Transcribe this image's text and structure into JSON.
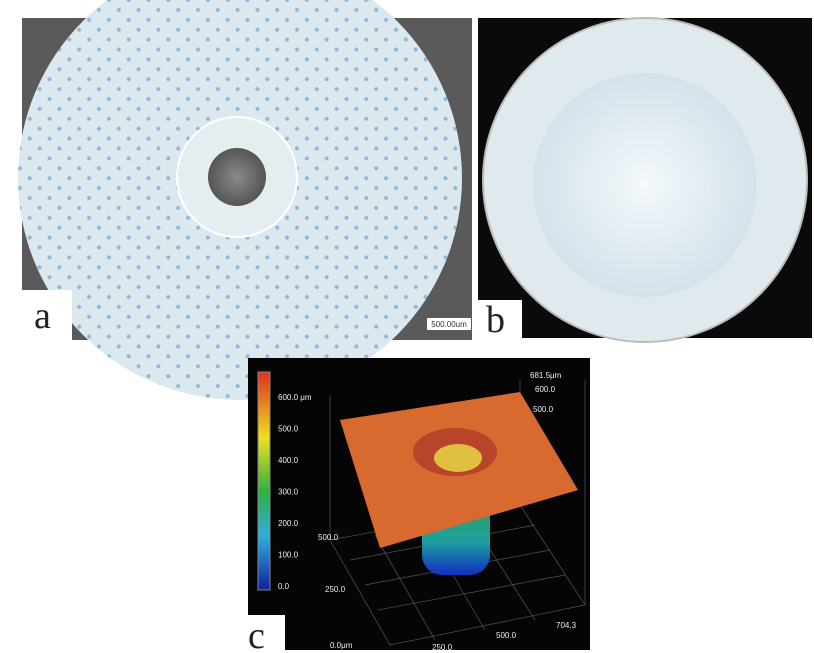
{
  "panels": [
    {
      "label": "a",
      "scale_bar": "500.00um"
    },
    {
      "label": "b"
    },
    {
      "label": "c",
      "colorbar_labels": [
        "600.0 μm",
        "500.0",
        "400.0",
        "300.0",
        "200.0",
        "100.0",
        "0.0"
      ],
      "z_axis_labels": [
        "681.5μm",
        "600.0",
        "500.0"
      ],
      "y_axis_labels": [
        "500.0",
        "250.0"
      ],
      "x_axis_labels": [
        "0.0μm",
        "250.0",
        "500.0",
        "704.3"
      ]
    }
  ]
}
